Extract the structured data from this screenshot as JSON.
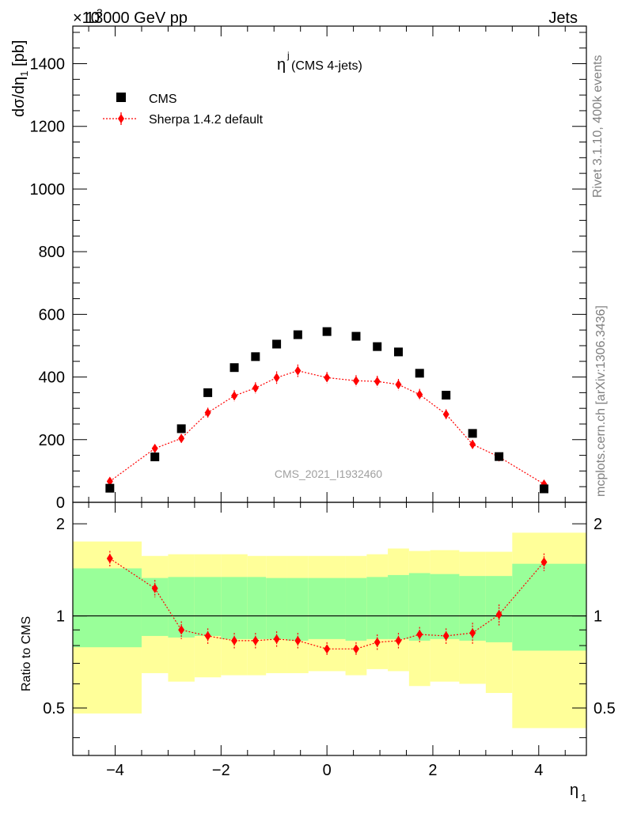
{
  "header": {
    "exponent_prefix": "×10",
    "exponent_power": "3",
    "process": "13000 GeV pp",
    "category": "Jets"
  },
  "side_labels": {
    "rivet": "Rivet 3.1.10,  400k events",
    "mcplots": "mcplots.cern.ch [arXiv:1306.3436]"
  },
  "watermark": "CMS_2021_I1932460",
  "chart_data": [
    {
      "type": "scatter",
      "title_main": "η",
      "title_sup": "j",
      "title_rest": " (CMS 4-jets)",
      "ylabel": "dσ/dη",
      "ylabel_sub": "1",
      "ylabel_unit": " [pb]",
      "xlim": [
        -4.8,
        4.9
      ],
      "ylim": [
        0,
        1520
      ],
      "yticks": [
        0,
        200,
        400,
        600,
        800,
        1000,
        1200,
        1400
      ],
      "ytick_labels": [
        "0",
        "200",
        "400",
        "600",
        "800",
        "1000",
        "1200",
        "1400"
      ],
      "legend_placement": "top-left",
      "series": [
        {
          "name": "CMS",
          "color": "#000000",
          "marker": "square",
          "x": [
            -4.1,
            -3.25,
            -2.75,
            -2.25,
            -1.75,
            -1.35,
            -0.95,
            -0.55,
            0.0,
            0.55,
            0.95,
            1.35,
            1.75,
            2.25,
            2.75,
            3.25,
            4.1
          ],
          "y": [
            45,
            145,
            235,
            350,
            430,
            465,
            505,
            535,
            545,
            530,
            497,
            480,
            412,
            342,
            220,
            146,
            43
          ]
        },
        {
          "name": "Sherpa 1.4.2 default",
          "color": "#ff0000",
          "marker": "diamond",
          "x": [
            -4.1,
            -3.25,
            -2.75,
            -2.25,
            -1.75,
            -1.35,
            -0.95,
            -0.55,
            0.0,
            0.55,
            0.95,
            1.35,
            1.75,
            2.25,
            2.75,
            3.25,
            4.1
          ],
          "y": [
            67,
            172,
            204,
            286,
            340,
            365,
            398,
            420,
            398,
            388,
            386,
            376,
            344,
            281,
            185,
            145,
            58
          ],
          "yerr": [
            8,
            12,
            14,
            16,
            18,
            18,
            20,
            20,
            18,
            18,
            18,
            18,
            18,
            16,
            14,
            10,
            8
          ]
        }
      ]
    },
    {
      "type": "scatter",
      "ylabel": "Ratio to CMS",
      "xlabel": "η",
      "xlabel_sub": "1",
      "xlim": [
        -4.8,
        4.9
      ],
      "ylim": [
        0.35,
        2.35
      ],
      "xticks": [
        -4,
        -2,
        0,
        2,
        4
      ],
      "xtick_labels": [
        "−4",
        "−2",
        "0",
        "2",
        "4"
      ],
      "yticks": [
        0.5,
        1,
        2
      ],
      "ytick_labels": [
        "0.5",
        "1",
        "2"
      ],
      "bands": {
        "edges": [
          -4.8,
          -3.5,
          -3.0,
          -2.5,
          -2.0,
          -1.5,
          -1.15,
          -0.75,
          -0.35,
          0.35,
          0.75,
          1.15,
          1.55,
          1.95,
          2.5,
          3.0,
          3.5,
          4.9
        ],
        "yellow_lo": [
          0.48,
          0.65,
          0.61,
          0.63,
          0.64,
          0.64,
          0.65,
          0.65,
          0.66,
          0.64,
          0.67,
          0.66,
          0.59,
          0.61,
          0.6,
          0.56,
          0.43
        ],
        "yellow_hi": [
          1.75,
          1.57,
          1.59,
          1.59,
          1.59,
          1.57,
          1.57,
          1.57,
          1.57,
          1.57,
          1.59,
          1.66,
          1.63,
          1.64,
          1.62,
          1.62,
          1.87
        ],
        "green_lo": [
          0.79,
          0.86,
          0.85,
          0.86,
          0.84,
          0.84,
          0.84,
          0.83,
          0.84,
          0.83,
          0.84,
          0.84,
          0.83,
          0.84,
          0.83,
          0.82,
          0.77
        ],
        "green_hi": [
          1.43,
          1.33,
          1.34,
          1.34,
          1.34,
          1.34,
          1.33,
          1.33,
          1.33,
          1.33,
          1.34,
          1.36,
          1.38,
          1.37,
          1.35,
          1.35,
          1.48
        ],
        "yellow_color": "#ffff99",
        "green_color": "#99ff99"
      },
      "reference_line": 1,
      "series": [
        {
          "name": "Sherpa 1.4.2 default",
          "color": "#ff0000",
          "marker": "diamond",
          "x": [
            -4.1,
            -3.25,
            -2.75,
            -2.25,
            -1.75,
            -1.35,
            -0.95,
            -0.55,
            0.0,
            0.55,
            0.95,
            1.35,
            1.75,
            2.25,
            2.75,
            3.25,
            4.1
          ],
          "y": [
            1.54,
            1.23,
            0.9,
            0.86,
            0.83,
            0.83,
            0.84,
            0.83,
            0.78,
            0.78,
            0.82,
            0.83,
            0.87,
            0.86,
            0.88,
            1.01,
            1.5
          ],
          "yerr": [
            0.09,
            0.08,
            0.06,
            0.05,
            0.05,
            0.05,
            0.05,
            0.05,
            0.04,
            0.04,
            0.05,
            0.05,
            0.05,
            0.05,
            0.07,
            0.08,
            0.1
          ]
        }
      ]
    }
  ]
}
